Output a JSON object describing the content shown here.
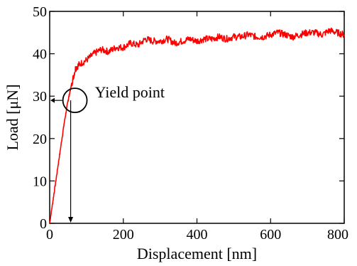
{
  "chart_data": {
    "type": "line",
    "title": "",
    "xlabel": "Displacement [nm]",
    "ylabel": "Load  [μN]",
    "xlim": [
      0,
      800
    ],
    "ylim": [
      0,
      50
    ],
    "xticks": [
      0,
      200,
      400,
      600,
      800
    ],
    "yticks": [
      0,
      10,
      20,
      30,
      40,
      50
    ],
    "grid": false,
    "series_color": "#ff0000",
    "series": [
      {
        "x": [
          0,
          10,
          20,
          30,
          40,
          50,
          55,
          60,
          70,
          80,
          100,
          120,
          140,
          160,
          180,
          200,
          220,
          240,
          260,
          280,
          300,
          320,
          340,
          360,
          380,
          400,
          420,
          440,
          460,
          480,
          500,
          520,
          540,
          560,
          580,
          600,
          620,
          640,
          660,
          680,
          700,
          720,
          740,
          760,
          780,
          800
        ],
        "y": [
          0,
          6,
          12,
          18,
          24,
          29,
          31,
          33,
          36.5,
          37.5,
          38.5,
          40,
          41,
          40.5,
          41.5,
          41.5,
          42.5,
          42,
          43.5,
          43,
          43,
          43.5,
          42.5,
          43,
          43.5,
          43,
          43.5,
          43.5,
          44,
          43.5,
          44,
          44,
          44.5,
          44,
          44,
          44.5,
          45,
          44.5,
          44,
          44.5,
          45,
          45,
          44.5,
          45.5,
          45,
          44.5
        ]
      }
    ],
    "annotation": {
      "label": "Yield point",
      "x": 57,
      "y": 29
    }
  }
}
